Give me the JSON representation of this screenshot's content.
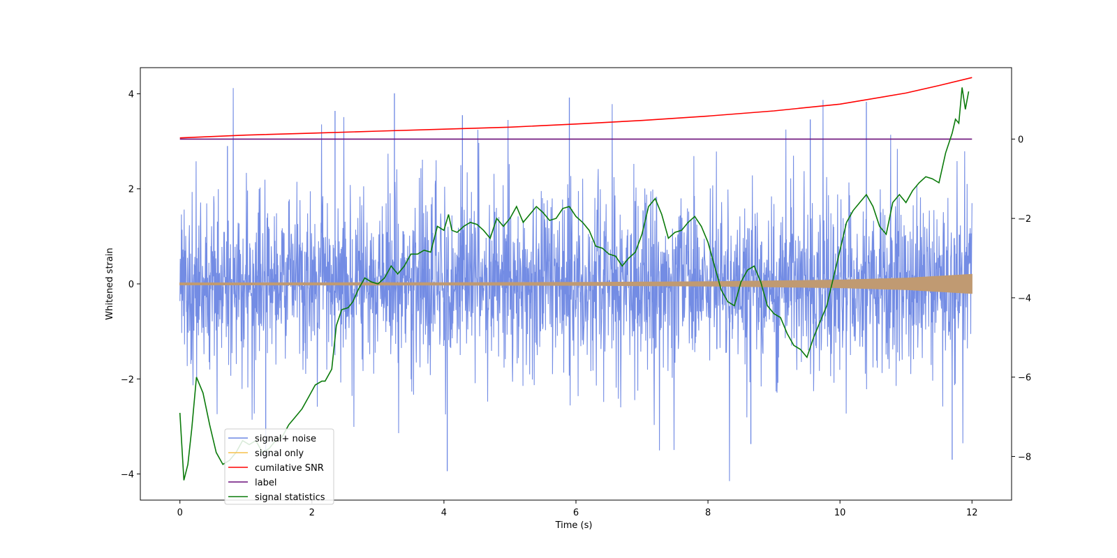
{
  "chart_data": {
    "type": "line",
    "title": "",
    "xlabel": "Time (s)",
    "ylabel": "Whitened strain",
    "y2label": "",
    "xlim": [
      -0.6,
      12.6
    ],
    "ylim": [
      -4.55,
      4.55
    ],
    "y2lim": [
      -9.1,
      1.8
    ],
    "x_ticks": [
      0,
      2,
      4,
      6,
      8,
      10,
      12
    ],
    "y_ticks": [
      -4,
      -2,
      0,
      2,
      4
    ],
    "y2_ticks": [
      -8,
      -6,
      -4,
      -2,
      0
    ],
    "grid": false,
    "legend_position": "lower-left",
    "noise_band": {
      "name": "signal+ noise",
      "color": "#6b86e3",
      "x_range": [
        0,
        12
      ],
      "typical_range": [
        -2.0,
        2.0
      ],
      "peak_max": 4.12,
      "peak_min": -4.15,
      "spike_times": [
        0.72,
        1.3,
        2.35,
        3.25,
        4.05,
        4.28,
        5.9,
        8.65,
        9.55,
        10.4,
        11.7
      ]
    },
    "series": [
      {
        "name": "signal only",
        "color": "#f5c04a",
        "axis": "left",
        "description": "chirp envelope",
        "x": [
          0,
          2,
          4,
          6,
          8,
          10,
          11,
          12
        ],
        "amplitude": [
          0.02,
          0.022,
          0.025,
          0.03,
          0.045,
          0.08,
          0.12,
          0.2
        ]
      },
      {
        "name": "cumilative SNR",
        "color": "#ff0000",
        "axis": "right",
        "x": [
          0,
          1,
          2,
          3,
          4,
          5,
          6,
          7,
          8,
          9,
          10,
          11,
          11.5,
          12
        ],
        "values": [
          0.03,
          0.1,
          0.15,
          0.2,
          0.25,
          0.3,
          0.38,
          0.47,
          0.58,
          0.71,
          0.88,
          1.16,
          1.35,
          1.55
        ]
      },
      {
        "name": "label",
        "color": "#6a0f7a",
        "axis": "right",
        "x": [
          0,
          12
        ],
        "values": [
          0.0,
          0.0
        ]
      },
      {
        "name": "signal statistics",
        "color": "#0a7a0a",
        "axis": "right",
        "x": [
          0,
          0.06,
          0.12,
          0.18,
          0.25,
          0.35,
          0.45,
          0.55,
          0.65,
          0.75,
          0.85,
          0.95,
          1.05,
          1.15,
          1.25,
          1.35,
          1.45,
          1.55,
          1.65,
          1.75,
          1.85,
          1.95,
          2.05,
          2.15,
          2.2,
          2.3,
          2.37,
          2.45,
          2.55,
          2.62,
          2.7,
          2.8,
          2.9,
          3.0,
          3.1,
          3.2,
          3.3,
          3.4,
          3.5,
          3.6,
          3.7,
          3.8,
          3.9,
          4.0,
          4.07,
          4.12,
          4.2,
          4.3,
          4.4,
          4.5,
          4.6,
          4.7,
          4.8,
          4.9,
          5.0,
          5.1,
          5.2,
          5.3,
          5.4,
          5.5,
          5.6,
          5.7,
          5.8,
          5.9,
          6.0,
          6.1,
          6.2,
          6.3,
          6.4,
          6.5,
          6.6,
          6.7,
          6.8,
          6.9,
          7.0,
          7.1,
          7.2,
          7.3,
          7.4,
          7.5,
          7.6,
          7.7,
          7.8,
          7.9,
          8.0,
          8.1,
          8.2,
          8.3,
          8.4,
          8.5,
          8.6,
          8.7,
          8.8,
          8.9,
          9.0,
          9.1,
          9.2,
          9.3,
          9.4,
          9.5,
          9.6,
          9.7,
          9.8,
          9.9,
          10.0,
          10.1,
          10.2,
          10.3,
          10.4,
          10.5,
          10.6,
          10.7,
          10.8,
          10.9,
          11.0,
          11.1,
          11.2,
          11.3,
          11.4,
          11.5,
          11.6,
          11.7,
          11.75,
          11.8,
          11.85,
          11.9,
          11.95
        ],
        "values": [
          -6.9,
          -8.6,
          -8.2,
          -7.3,
          -6.0,
          -6.4,
          -7.2,
          -7.9,
          -8.2,
          -8.1,
          -7.9,
          -7.6,
          -7.7,
          -7.6,
          -7.9,
          -7.8,
          -7.6,
          -7.5,
          -7.2,
          -7.0,
          -6.8,
          -6.5,
          -6.2,
          -6.1,
          -6.1,
          -5.8,
          -4.7,
          -4.3,
          -4.25,
          -4.1,
          -3.8,
          -3.5,
          -3.6,
          -3.65,
          -3.5,
          -3.2,
          -3.4,
          -3.2,
          -2.9,
          -2.9,
          -2.8,
          -2.85,
          -2.2,
          -2.3,
          -1.9,
          -2.3,
          -2.35,
          -2.2,
          -2.1,
          -2.15,
          -2.3,
          -2.5,
          -2.0,
          -2.2,
          -2.0,
          -1.7,
          -2.1,
          -1.9,
          -1.7,
          -1.85,
          -2.05,
          -2.0,
          -1.75,
          -1.7,
          -1.95,
          -2.1,
          -2.3,
          -2.7,
          -2.75,
          -2.9,
          -2.95,
          -3.2,
          -3.0,
          -2.85,
          -2.4,
          -1.7,
          -1.5,
          -1.9,
          -2.5,
          -2.35,
          -2.3,
          -2.1,
          -1.95,
          -2.2,
          -2.6,
          -3.2,
          -3.8,
          -4.1,
          -4.2,
          -3.6,
          -3.3,
          -3.2,
          -3.6,
          -4.2,
          -4.4,
          -4.5,
          -4.9,
          -5.2,
          -5.3,
          -5.5,
          -5.0,
          -4.6,
          -4.2,
          -3.5,
          -2.8,
          -2.1,
          -1.8,
          -1.6,
          -1.4,
          -1.7,
          -2.2,
          -2.4,
          -1.6,
          -1.4,
          -1.6,
          -1.3,
          -1.1,
          -0.95,
          -1.0,
          -1.1,
          -0.35,
          0.15,
          0.5,
          0.4,
          1.3,
          0.75,
          1.2
        ]
      }
    ]
  }
}
